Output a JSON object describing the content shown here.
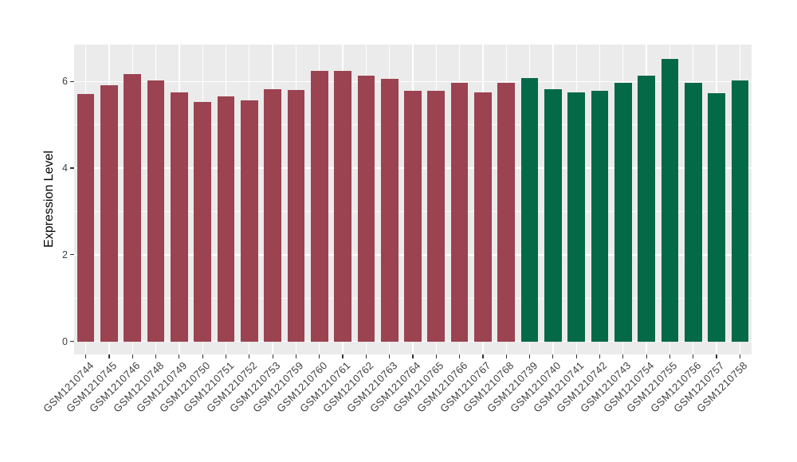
{
  "panel_style": {
    "background": "#EBEBEB",
    "grid_color": "#FFFFFF",
    "tick_color": "#333333",
    "axis_text_color": "#404040",
    "title_color": "#000000"
  },
  "chart_data": {
    "type": "bar",
    "title": "",
    "xlabel": "",
    "ylabel": "Expression Level",
    "ylim": [
      -0.3,
      6.85
    ],
    "yticks": [
      0,
      2,
      4,
      6
    ],
    "yticks_minor": [
      1,
      3,
      5
    ],
    "grid": "white major+minor horizontal and per-category vertical gridlines on gray panel",
    "legend": "none",
    "bar_width_fraction": 0.74,
    "group_colors": {
      "group1": "#9B4350",
      "group2": "#036947"
    },
    "categories": [
      "GSM1210744",
      "GSM1210745",
      "GSM1210746",
      "GSM1210748",
      "GSM1210749",
      "GSM1210750",
      "GSM1210751",
      "GSM1210752",
      "GSM1210753",
      "GSM1210759",
      "GSM1210760",
      "GSM1210761",
      "GSM1210762",
      "GSM1210763",
      "GSM1210764",
      "GSM1210765",
      "GSM1210766",
      "GSM1210767",
      "GSM1210768",
      "GSM1210739",
      "GSM1210740",
      "GSM1210741",
      "GSM1210742",
      "GSM1210743",
      "GSM1210754",
      "GSM1210755",
      "GSM1210756",
      "GSM1210757",
      "GSM1210758"
    ],
    "groups": [
      "group1",
      "group1",
      "group1",
      "group1",
      "group1",
      "group1",
      "group1",
      "group1",
      "group1",
      "group1",
      "group1",
      "group1",
      "group1",
      "group1",
      "group1",
      "group1",
      "group1",
      "group1",
      "group1",
      "group2",
      "group2",
      "group2",
      "group2",
      "group2",
      "group2",
      "group2",
      "group2",
      "group2",
      "group2"
    ],
    "series": [
      {
        "name": "Expression Level",
        "values": [
          5.72,
          5.91,
          6.17,
          6.02,
          5.74,
          5.52,
          5.65,
          5.57,
          5.83,
          5.81,
          6.24,
          6.25,
          6.13,
          6.06,
          5.79,
          5.79,
          5.97,
          5.74,
          5.97,
          6.07,
          5.83,
          5.75,
          5.79,
          5.97,
          6.13,
          6.52,
          5.97,
          5.73,
          6.03
        ]
      }
    ]
  }
}
